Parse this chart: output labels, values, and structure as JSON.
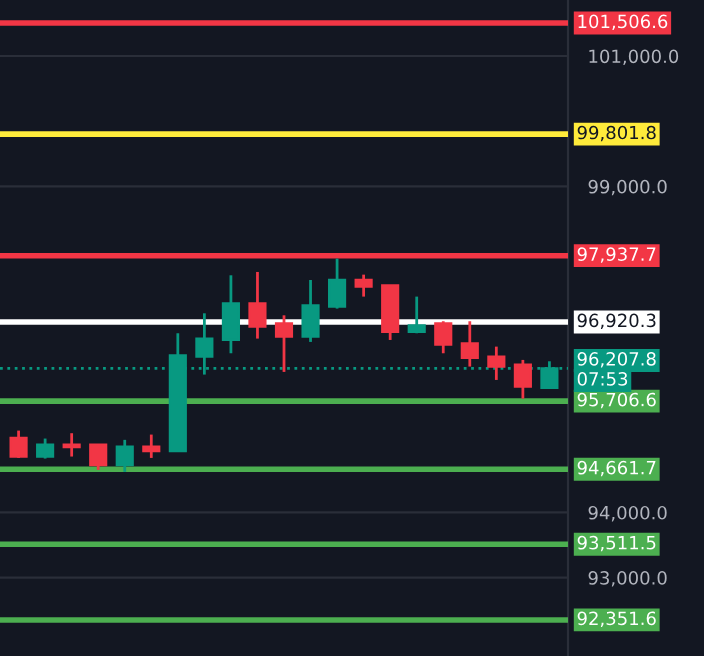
{
  "chart_data": {
    "type": "candlestick",
    "categories": [
      null,
      null,
      null,
      null,
      null,
      null,
      null,
      null,
      null,
      null,
      null,
      null,
      null,
      null,
      null,
      null,
      null,
      null,
      null,
      null,
      null
    ],
    "ohlc": [
      [
        95143,
        95255,
        94836,
        94857
      ],
      [
        94857,
        95133,
        94826,
        95041
      ],
      [
        95041,
        95215,
        94857,
        95000
      ],
      [
        95041,
        95041,
        94653,
        94724
      ],
      [
        94724,
        95113,
        94622,
        95010
      ],
      [
        95010,
        95194,
        94836,
        94939
      ],
      [
        94939,
        96748,
        94939,
        96410
      ],
      [
        96390,
        97054,
        96114,
        96666
      ],
      [
        96645,
        97637,
        96441,
        97208
      ],
      [
        97208,
        97688,
        96666,
        96850
      ],
      [
        96901,
        97023,
        96155,
        96697
      ],
      [
        96697,
        97565,
        96615,
        97177
      ],
      [
        97156,
        97892,
        97126,
        97565
      ],
      [
        97565,
        97647,
        97310,
        97463
      ],
      [
        97483,
        97483,
        96645,
        96768
      ],
      [
        96768,
        97310,
        96748,
        96870
      ],
      [
        96901,
        96932,
        96441,
        96574
      ],
      [
        96594,
        96932,
        96237,
        96370
      ],
      [
        96390,
        96543,
        96032,
        96237
      ],
      [
        96267,
        96339,
        95746,
        95930
      ],
      [
        95909,
        96318,
        95909,
        96208
      ]
    ],
    "colors": [
      "#f23645",
      "#089981",
      "#f23645",
      "#f23645",
      "#089981",
      "#f23645",
      "#089981",
      "#089981",
      "#089981",
      "#f23645",
      "#f23645",
      "#089981",
      "#089981",
      "#f23645",
      "#f23645",
      "#089981",
      "#f23645",
      "#f23645",
      "#f23645",
      "#f23645",
      "#089981"
    ],
    "ylim": [
      91798,
      101859
    ],
    "yticks": [
      {
        "value": 93000,
        "label": "93,000.0"
      },
      {
        "value": 94000,
        "label": "94,000.0"
      },
      {
        "value": 99000,
        "label": "99,000.0"
      },
      {
        "value": 101000,
        "label": "101,000.0"
      }
    ],
    "grid": "y",
    "ref_lines": [
      {
        "axis": "y",
        "value": 101506.6,
        "label": "101,506.6",
        "color": "#f23645",
        "line_style": "solid"
      },
      {
        "axis": "y",
        "value": 99801.8,
        "label": "99,801.8",
        "color": "#ffeb3b",
        "line_style": "solid"
      },
      {
        "axis": "y",
        "value": 97937.7,
        "label": "97,937.7",
        "color": "#f23645",
        "line_style": "solid"
      },
      {
        "axis": "y",
        "value": 96920.3,
        "label": "96,920.3",
        "color": "#ffffff",
        "line_style": "solid"
      },
      {
        "axis": "y",
        "value": 96207.8,
        "label": "96,207.8",
        "color": "#089981",
        "line_style": "dotted"
      },
      {
        "axis": "y",
        "value": 95706.6,
        "label": "95,706.6",
        "color": "#4caf50",
        "line_style": "solid"
      },
      {
        "axis": "y",
        "value": 94661.7,
        "label": "94,661.7",
        "color": "#4caf50",
        "line_style": "solid"
      },
      {
        "axis": "y",
        "value": 93511.5,
        "label": "93,511.5",
        "color": "#4caf50",
        "line_style": "solid"
      },
      {
        "axis": "y",
        "value": 92351.6,
        "label": "92,351.6",
        "color": "#4caf50",
        "line_style": "solid"
      }
    ],
    "annotations": [
      "07:53"
    ]
  }
}
